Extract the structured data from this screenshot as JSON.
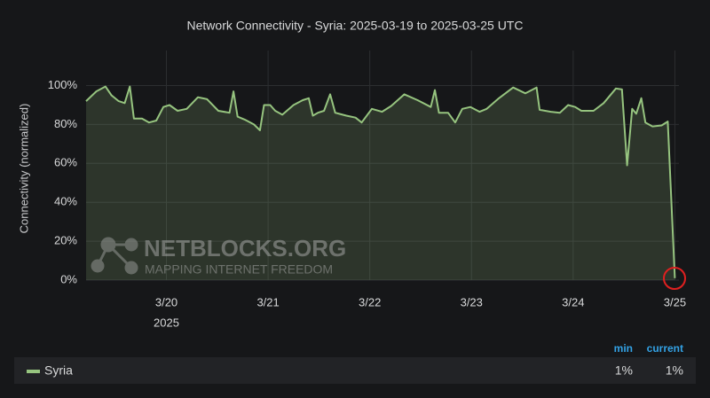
{
  "chart_data": {
    "type": "line",
    "title": "Network Connectivity - Syria: 2025-03-19 to 2025-03-25 UTC",
    "y_axis_label": "Connectivity (normalized)",
    "x_year_label": "2025",
    "watermark": {
      "name": "NETBLOCKS.ORG",
      "tagline": "MAPPING INTERNET FREEDOM"
    },
    "xlim": [
      19.21,
      25.04
    ],
    "xticks": [
      {
        "value": 20,
        "label": "3/20"
      },
      {
        "value": 21,
        "label": "3/21"
      },
      {
        "value": 22,
        "label": "3/22"
      },
      {
        "value": 23,
        "label": "3/23"
      },
      {
        "value": 24,
        "label": "3/24"
      },
      {
        "value": 25,
        "label": "3/25"
      }
    ],
    "ylim": [
      0,
      118
    ],
    "yticks": [
      {
        "value": 0,
        "label": "0%"
      },
      {
        "value": 20,
        "label": "20%"
      },
      {
        "value": 40,
        "label": "40%"
      },
      {
        "value": 60,
        "label": "60%"
      },
      {
        "value": 80,
        "label": "80%"
      },
      {
        "value": 100,
        "label": "100%"
      }
    ],
    "grid": true,
    "x": [
      19.21,
      19.31,
      19.4,
      19.46,
      19.53,
      19.59,
      19.64,
      19.68,
      19.76,
      19.83,
      19.9,
      19.97,
      20.03,
      20.11,
      20.2,
      20.31,
      20.4,
      20.51,
      20.62,
      20.66,
      20.7,
      20.77,
      20.86,
      20.92,
      20.96,
      21.02,
      21.07,
      21.14,
      21.25,
      21.34,
      21.4,
      21.44,
      21.49,
      21.55,
      21.61,
      21.66,
      21.77,
      21.86,
      21.92,
      22.02,
      22.12,
      22.21,
      22.34,
      22.47,
      22.6,
      22.64,
      22.68,
      22.77,
      22.84,
      22.91,
      22.99,
      23.08,
      23.15,
      23.27,
      23.41,
      23.53,
      23.64,
      23.67,
      23.78,
      23.87,
      23.95,
      24.02,
      24.08,
      24.2,
      24.3,
      24.42,
      24.48,
      24.53,
      24.58,
      24.62,
      24.67,
      24.71,
      24.78,
      24.87,
      24.93,
      25.0
    ],
    "series": [
      {
        "name": "Syria",
        "color": "#96c47f",
        "values": [
          92,
          97,
          99.5,
          95,
          92,
          91,
          99.5,
          83,
          83,
          81,
          82,
          89,
          90,
          87,
          88,
          94,
          93,
          87,
          86,
          97,
          84,
          82.5,
          80,
          77,
          90,
          90,
          87,
          85,
          90,
          92.5,
          93.5,
          84.5,
          86,
          87,
          95.5,
          86,
          84.5,
          83.5,
          81,
          88,
          86.5,
          89.5,
          95.5,
          92.5,
          89,
          97.7,
          86,
          86,
          81,
          88,
          89,
          86.5,
          88,
          93.5,
          99,
          96,
          99,
          87.5,
          86.5,
          86,
          90,
          89,
          87,
          87,
          91,
          98.5,
          98,
          59,
          88,
          85.5,
          93.5,
          81,
          79,
          79.5,
          81.5,
          1
        ],
        "stats": {
          "headers": [
            "min",
            "current"
          ],
          "values": [
            1,
            1
          ],
          "value_labels": [
            "1%",
            "1%"
          ]
        }
      }
    ]
  }
}
